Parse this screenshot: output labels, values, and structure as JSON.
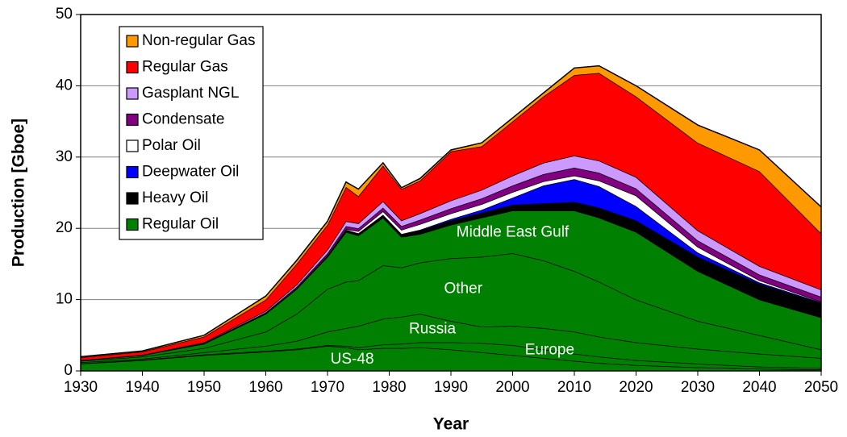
{
  "chart_data": {
    "type": "stacked_area",
    "xlabel": "Year",
    "ylabel": "Production [Gboe]",
    "x": [
      1930,
      1940,
      1950,
      1960,
      1965,
      1970,
      1973,
      1975,
      1979,
      1982,
      1985,
      1990,
      1995,
      2000,
      2005,
      2010,
      2014,
      2020,
      2030,
      2040,
      2050
    ],
    "xlim": [
      1930,
      2050
    ],
    "xticks": [
      1930,
      1940,
      1950,
      1960,
      1970,
      1980,
      1990,
      2000,
      2010,
      2020,
      2030,
      2040,
      2050
    ],
    "ylim": [
      0,
      50
    ],
    "yticks": [
      0,
      10,
      20,
      30,
      40,
      50
    ],
    "grid": true,
    "legend": "upper left",
    "series": [
      {
        "name": "Regular Oil",
        "color": "#008000",
        "components": [
          {
            "name": "US-48",
            "values": [
              1,
              1.5,
              2.2,
              2.7,
              3,
              3.5,
              3.3,
              3.0,
              3.2,
              3.2,
              3.3,
              3,
              2.6,
              2.2,
              1.8,
              1.4,
              1.1,
              0.8,
              0.5,
              0.3,
              0.2
            ]
          },
          {
            "name": "Europe",
            "values": [
              0.05,
              0.05,
              0.1,
              0.1,
              0.1,
              0.1,
              0.2,
              0.3,
              0.5,
              0.6,
              0.7,
              1.0,
              1.3,
              1.4,
              1.2,
              1.0,
              0.9,
              0.7,
              0.5,
              0.3,
              0.2
            ]
          },
          {
            "name": "Russia",
            "values": [
              0.15,
              0.15,
              0.3,
              0.7,
              1.1,
              1.9,
              2.5,
              3.0,
              3.6,
              3.8,
              4.0,
              3.0,
              2.3,
              2.7,
              3.0,
              3.1,
              2.8,
              2.5,
              2.1,
              1.8,
              1.4
            ]
          },
          {
            "name": "Other",
            "values": [
              0.2,
              0.3,
              0.6,
              2.0,
              3.8,
              6.0,
              6.5,
              6.4,
              7.5,
              6.9,
              7.2,
              8.8,
              9.8,
              10.2,
              9.5,
              8.5,
              7.7,
              6.0,
              3.9,
              2.6,
              1.2
            ]
          },
          {
            "name": "Middle East Gulf",
            "values": [
              0.1,
              0.2,
              0.6,
              2.5,
              3.5,
              4.5,
              7.0,
              6.3,
              6.7,
              4.3,
              4.0,
              4.7,
              5.5,
              6.0,
              7.0,
              8.5,
              9.0,
              9.5,
              7.0,
              5.0,
              4.5
            ]
          }
        ]
      },
      {
        "name": "Heavy Oil",
        "color": "#000000",
        "values": [
          0,
          0,
          0.05,
          0.1,
          0.1,
          0.2,
          0.3,
          0.3,
          0.4,
          0.4,
          0.5,
          0.6,
          0.7,
          0.8,
          1.0,
          1.2,
          1.4,
          1.6,
          2.0,
          2.2,
          2.0
        ]
      },
      {
        "name": "Deepwater Oil",
        "color": "#0000ff",
        "values": [
          0,
          0,
          0,
          0,
          0,
          0,
          0,
          0,
          0,
          0,
          0.1,
          0.2,
          0.4,
          1.0,
          2.5,
          3.2,
          3.0,
          2.0,
          0.6,
          0.2,
          0.1
        ]
      },
      {
        "name": "Polar Oil",
        "color": "#ffffff",
        "values": [
          0,
          0,
          0,
          0,
          0,
          0,
          0.1,
          0.3,
          0.5,
          0.6,
          0.8,
          0.8,
          0.8,
          0.8,
          0.6,
          0.5,
          0.8,
          1.5,
          0.8,
          0.3,
          0.1
        ]
      },
      {
        "name": "Condensate",
        "color": "#800080",
        "values": [
          0,
          0,
          0.05,
          0.1,
          0.2,
          0.3,
          0.4,
          0.4,
          0.5,
          0.5,
          0.6,
          0.7,
          0.8,
          0.9,
          1.0,
          1.1,
          1.1,
          1.0,
          0.9,
          0.8,
          0.7
        ]
      },
      {
        "name": "Gasplant NGL",
        "color": "#cc99ff",
        "values": [
          0,
          0.05,
          0.1,
          0.2,
          0.3,
          0.5,
          0.7,
          0.7,
          0.9,
          0.8,
          0.9,
          1.1,
          1.2,
          1.4,
          1.6,
          1.7,
          1.7,
          1.6,
          1.4,
          1.2,
          1.0
        ]
      },
      {
        "name": "Regular Gas",
        "color": "#ff0000",
        "values": [
          0.4,
          0.45,
          0.8,
          1.6,
          2.9,
          3.5,
          4.8,
          3.8,
          5.0,
          4.4,
          4.6,
          6.9,
          6.1,
          7.6,
          9.3,
          11.3,
          12.3,
          11.3,
          12.3,
          13.3,
          7.9
        ]
      },
      {
        "name": "Non-regular Gas",
        "color": "#ff9900",
        "values": [
          0.1,
          0.1,
          0.2,
          0.5,
          0.5,
          0.5,
          0.7,
          1.0,
          0.4,
          0.2,
          0.3,
          0.2,
          0.5,
          0.5,
          0.5,
          1.0,
          1.0,
          1.5,
          2.5,
          3.0,
          3.7
        ]
      }
    ]
  }
}
